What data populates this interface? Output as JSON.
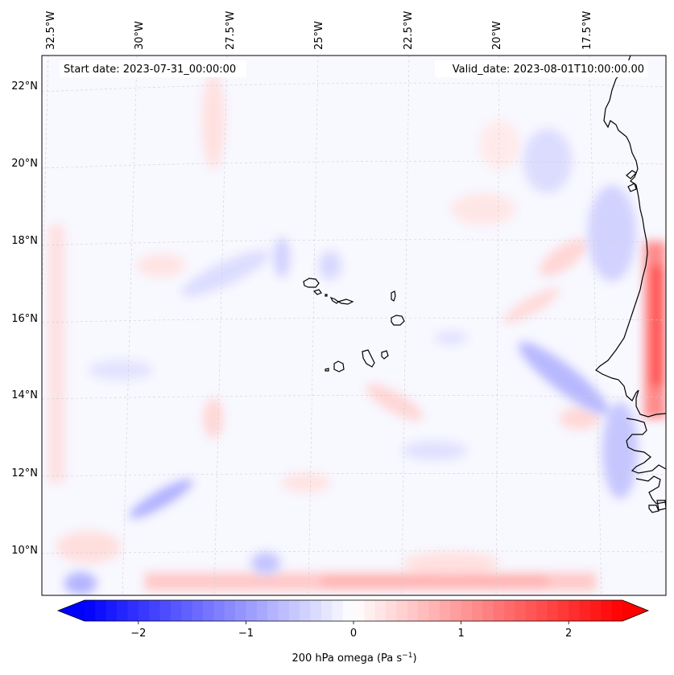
{
  "header": {
    "start_date": "Start date: 2023-07-31_00:00:00",
    "valid_date": "Valid_date: 2023-08-01T10:00:00.00"
  },
  "longitude_labels": [
    "32.5°W",
    "30°W",
    "27.5°W",
    "25°W",
    "22.5°W",
    "20°W",
    "17.5°W"
  ],
  "latitude_labels": [
    "22°N",
    "20°N",
    "18°N",
    "16°N",
    "14°N",
    "12°N",
    "10°N"
  ],
  "colorbar": {
    "label_prefix": "200 hPa omega (Pa s",
    "label_exp": "−1",
    "label_suffix": ")",
    "tick_labels": [
      "−2",
      "−1",
      "0",
      "1",
      "2"
    ],
    "min": -2.5,
    "max": 2.5,
    "colormap": "bwr",
    "extend": "both"
  },
  "colors": {
    "negative": "#0000ff",
    "neutral": "#ffffff",
    "positive": "#ff0000",
    "coastline": "#000000",
    "gridline": "#cccccc"
  }
}
